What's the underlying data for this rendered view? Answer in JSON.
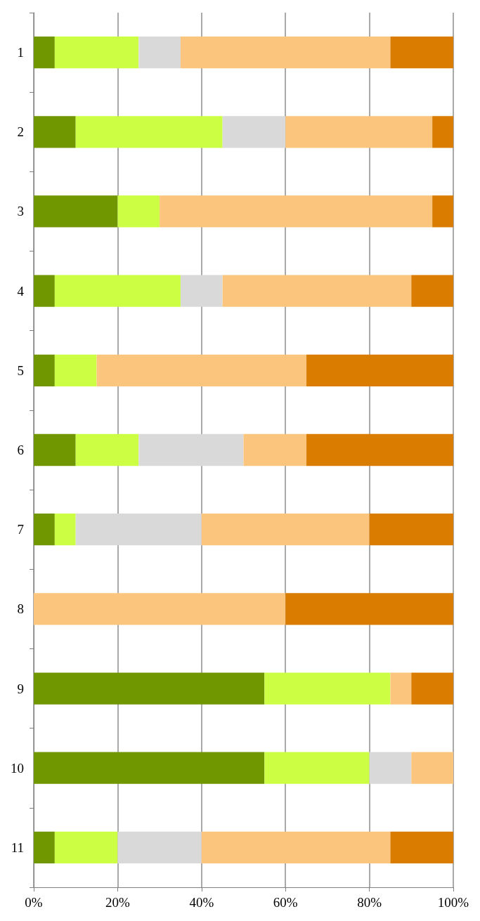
{
  "chart_data": {
    "type": "bar",
    "orientation": "horizontal",
    "stacked": true,
    "categories": [
      "1",
      "2",
      "3",
      "4",
      "5",
      "6",
      "7",
      "8",
      "9",
      "10",
      "11"
    ],
    "series": [
      {
        "color": "#709600",
        "values": [
          5,
          10,
          20,
          5,
          5,
          10,
          5,
          0,
          55,
          55,
          5
        ]
      },
      {
        "color": "#ccff44",
        "values": [
          20,
          35,
          10,
          30,
          10,
          15,
          5,
          0,
          30,
          25,
          15
        ]
      },
      {
        "color": "#d9d9d9",
        "values": [
          10,
          15,
          0,
          10,
          0,
          25,
          30,
          0,
          0,
          10,
          20
        ]
      },
      {
        "color": "#fcc57e",
        "values": [
          50,
          35,
          65,
          45,
          50,
          15,
          40,
          60,
          5,
          10,
          45
        ]
      },
      {
        "color": "#d97c00",
        "values": [
          15,
          5,
          5,
          10,
          35,
          35,
          20,
          40,
          10,
          0,
          15
        ]
      }
    ],
    "xlim": [
      0,
      100
    ],
    "xticks": [
      {
        "value": 0,
        "label": "0%"
      },
      {
        "value": 20,
        "label": "20%"
      },
      {
        "value": 40,
        "label": "40%"
      },
      {
        "value": 60,
        "label": "60%"
      },
      {
        "value": 80,
        "label": "80%"
      },
      {
        "value": 100,
        "label": "100%"
      }
    ],
    "grid": "x"
  }
}
